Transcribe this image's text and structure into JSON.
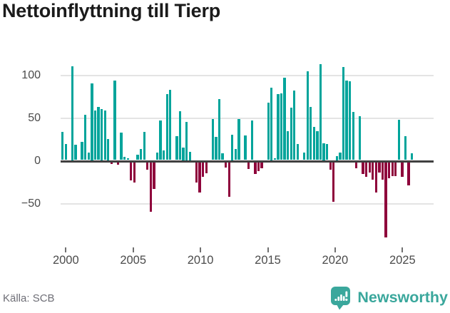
{
  "header": {
    "title": "Nettoinflyttning till Tierp"
  },
  "footer": {
    "source": "Källa: SCB",
    "brand": "Newsworthy"
  },
  "colors": {
    "positive_bar": "#00A49B",
    "negative_bar": "#8E013B",
    "axis_line": "#404040",
    "gridline": "#E4E4E4",
    "brand_teal": "#3AA79C",
    "title_text": "#1B1B1B",
    "tick_text": "#4B4B4B",
    "source_text": "#6E6E76"
  },
  "chart_data": {
    "type": "bar",
    "title": "Nettoinflyttning till Tierp",
    "frequency": "quarterly",
    "xlabel": "",
    "ylabel": "",
    "ylim": [
      -100,
      120
    ],
    "grid": true,
    "yticks": [
      {
        "label": "100",
        "value": 100
      },
      {
        "label": "50",
        "value": 50
      },
      {
        "label": "0",
        "value": 0
      },
      {
        "label": "−50",
        "value": -50
      }
    ],
    "xticks": [
      "2000",
      "2005",
      "2010",
      "2015",
      "2020",
      "2025"
    ],
    "series_by_year": [
      {
        "year": 2000,
        "quarters": [
          33,
          19,
          0,
          110
        ]
      },
      {
        "year": 2001,
        "quarters": [
          18,
          0,
          21,
          53
        ]
      },
      {
        "year": 2002,
        "quarters": [
          9,
          90,
          58,
          62
        ]
      },
      {
        "year": 2003,
        "quarters": [
          60,
          58,
          25,
          -2
        ]
      },
      {
        "year": 2004,
        "quarters": [
          93,
          -3,
          32,
          4
        ]
      },
      {
        "year": 2005,
        "quarters": [
          2,
          -21,
          -24,
          6
        ]
      },
      {
        "year": 2006,
        "quarters": [
          13,
          33,
          -9,
          -58
        ]
      },
      {
        "year": 2007,
        "quarters": [
          -31,
          9,
          46,
          11
        ]
      },
      {
        "year": 2008,
        "quarters": [
          77,
          82,
          0,
          28
        ]
      },
      {
        "year": 2009,
        "quarters": [
          57,
          15,
          45,
          10
        ]
      },
      {
        "year": 2010,
        "quarters": [
          0,
          -24,
          -35,
          -17
        ]
      },
      {
        "year": 2011,
        "quarters": [
          -13,
          0,
          48,
          27
        ]
      },
      {
        "year": 2012,
        "quarters": [
          71,
          8,
          -6,
          -40
        ]
      },
      {
        "year": 2013,
        "quarters": [
          30,
          13,
          48,
          0
        ]
      },
      {
        "year": 2014,
        "quarters": [
          29,
          -8,
          46,
          -14
        ]
      },
      {
        "year": 2015,
        "quarters": [
          -10,
          -7,
          0,
          67
        ]
      },
      {
        "year": 2016,
        "quarters": [
          85,
          2,
          77,
          78
        ]
      },
      {
        "year": 2017,
        "quarters": [
          96,
          34,
          61,
          81
        ]
      },
      {
        "year": 2018,
        "quarters": [
          19,
          0,
          9,
          104
        ]
      },
      {
        "year": 2019,
        "quarters": [
          62,
          39,
          34,
          112
        ]
      },
      {
        "year": 2020,
        "quarters": [
          20,
          19,
          -9,
          -46
        ]
      },
      {
        "year": 2021,
        "quarters": [
          5,
          9,
          109,
          93
        ]
      },
      {
        "year": 2022,
        "quarters": [
          92,
          56,
          -7,
          51
        ]
      },
      {
        "year": 2023,
        "quarters": [
          -14,
          -17,
          -12,
          -20
        ]
      },
      {
        "year": 2024,
        "quarters": [
          -35,
          -12,
          -20,
          -88
        ]
      },
      {
        "year": 2025,
        "quarters": [
          -19,
          -16,
          -16,
          47
        ]
      },
      {
        "year": 2026,
        "quarters": [
          -17,
          28,
          -27,
          8
        ]
      }
    ]
  }
}
